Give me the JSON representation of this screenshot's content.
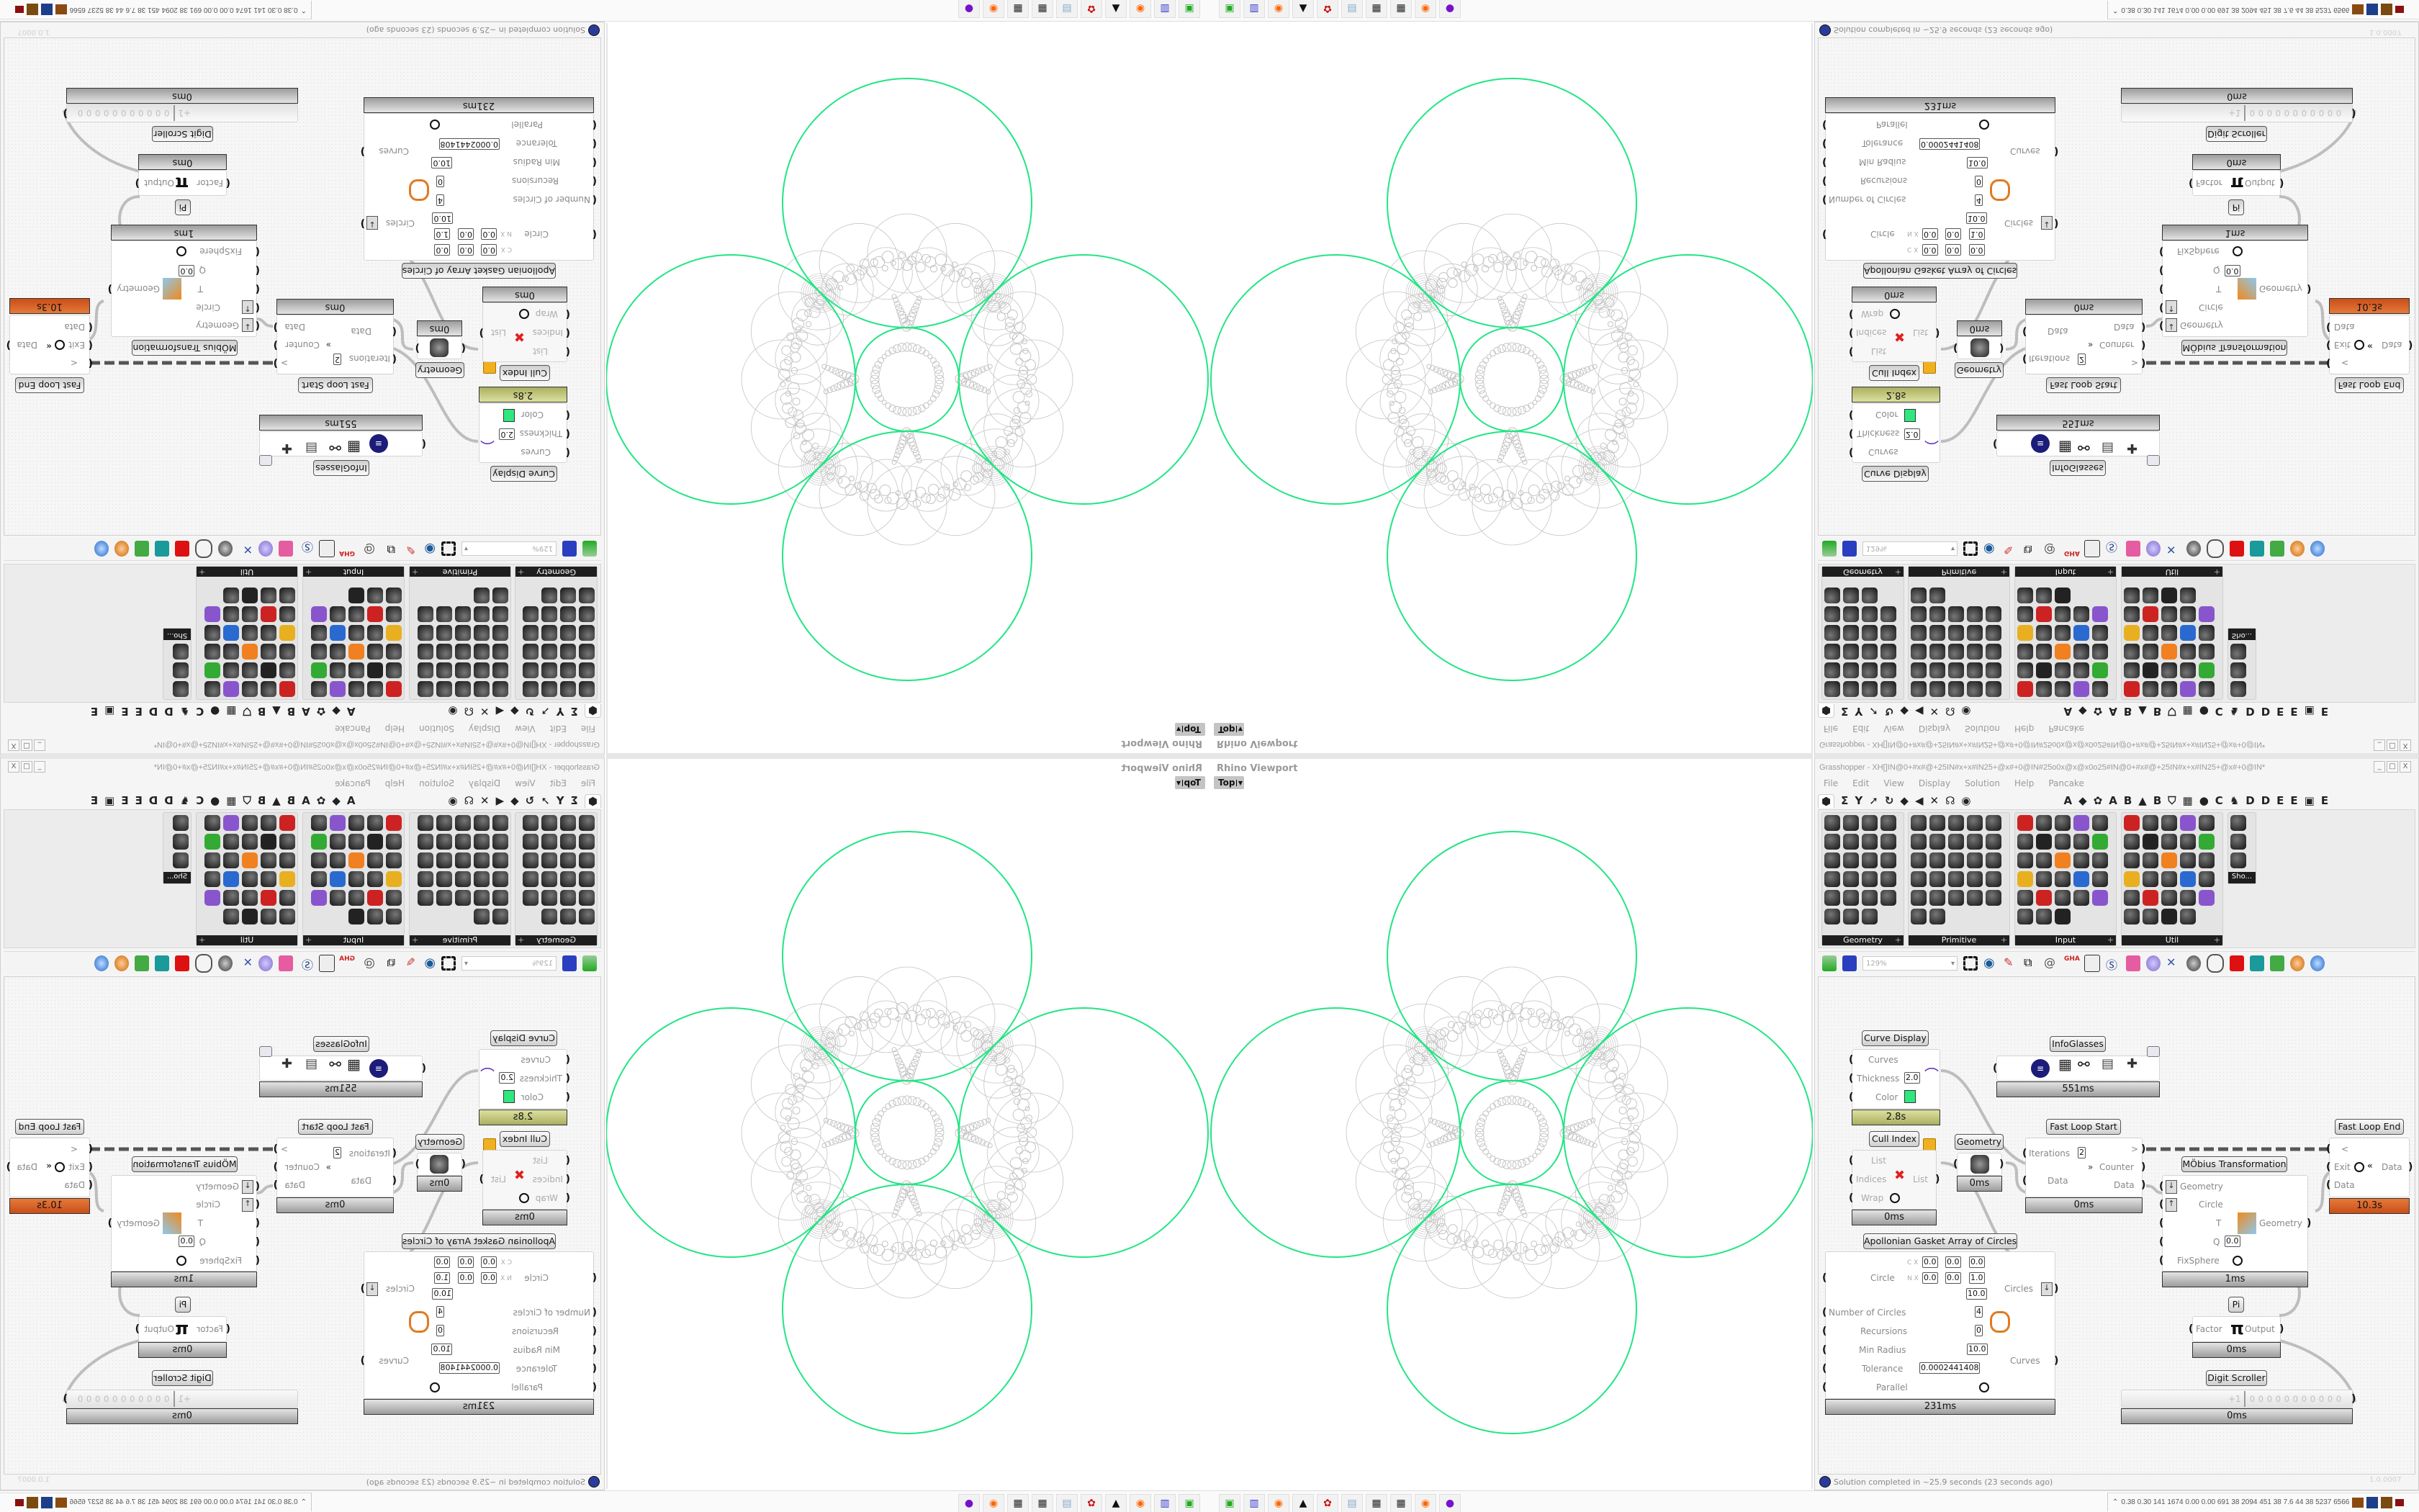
{
  "rhino": {
    "title": "Rhino Viewport",
    "view": "Top",
    "circle_color": "#22e584",
    "gasket_color": "#c4c4c4"
  },
  "gh": {
    "title": "Grasshopper - XH[]IN@0+#x#@+25IN#x+x#IN25+@x#+0@IN#25o0x@x@x0o25#IN@0+#x#@+25IN#x+x#IN25+@x#+0@IN*",
    "window_buttons": [
      "_",
      "□",
      "X"
    ],
    "menu": [
      "File",
      "Edit",
      "View",
      "Display",
      "Solution",
      "Help",
      "Pancake"
    ],
    "tabs": [
      "⬢",
      "Σ",
      "Y",
      "➚",
      "↻",
      "◆",
      "◀",
      "✕",
      "☊",
      "◉",
      "A",
      "◆",
      "✿",
      "A",
      "B",
      "▲",
      "B",
      "⛉",
      "▦",
      "●",
      "C",
      "♞",
      "D",
      "D",
      "E",
      "E",
      "▣",
      "E"
    ],
    "panels": [
      "Geometry",
      "Primitive",
      "Input",
      "Util",
      "Sho..."
    ],
    "zoom": "129%",
    "status": "Solution completed in ~25.9 seconds (23 seconds ago)",
    "version": "1.0.0007"
  },
  "nodes": {
    "curve_display": {
      "label": "Curve Display",
      "inputs": [
        "Curves",
        "Thickness",
        "Color"
      ],
      "thickness": "2.0",
      "color": "#2ee87f",
      "time": "2.8s"
    },
    "infoglasses": {
      "label": "InfoGlasses",
      "time": "551ms"
    },
    "cull_index": {
      "label": "Cull Index",
      "inputs": [
        "List",
        "Indices",
        "Wrap"
      ],
      "output": "List",
      "time": "0ms"
    },
    "geometry": {
      "label": "Geometry",
      "time": "0ms"
    },
    "fast_loop_start": {
      "label": "Fast Loop Start",
      "iterations_label": "Iterations",
      "iterations": "2",
      "data_in": "Data",
      "loop_out": ">",
      "counter": "Counter",
      "data_out": "Data",
      "time": "0ms"
    },
    "fast_loop_end": {
      "label": "Fast Loop End",
      "loop_in": "<",
      "exit": "Exit",
      "data_in": "Data",
      "data_out": "Data",
      "time": "10.3s"
    },
    "mobius": {
      "label": "MÖbius Transformation",
      "inputs": [
        "Geometry",
        "Circle",
        "T",
        "Q",
        "FixSphere"
      ],
      "q": "0.0",
      "output": "Geometry",
      "time": "1ms"
    },
    "pi": {
      "label": "Pi",
      "input": "Factor",
      "output": "Output",
      "time": "0ms"
    },
    "digit_scroller": {
      "label": "Digit Scroller",
      "prefix": "+1",
      "digits": "0 0 0 0 0 0 0 0 0 0 0",
      "time": "0ms"
    },
    "apollonian": {
      "label": "Apollonian Gasket Array of Circles",
      "circle_label": "Circle",
      "c": {
        "x": "0.0",
        "y": "0.0",
        "z": "0.0"
      },
      "n": {
        "x": "0.0",
        "y": "0.0",
        "z": "1.0"
      },
      "r": "10.0",
      "inputs": [
        "Number of Circles",
        "Recursions",
        "Min Radius",
        "Tolerance",
        "Parallel"
      ],
      "values": [
        "4",
        "0",
        "10.0",
        "0.0002441408"
      ],
      "outputs": [
        "Circles",
        "Curves"
      ],
      "time": "231ms"
    }
  },
  "taskbar": {
    "apps": [
      "terminal-app",
      "floppy-64-app",
      "firefox",
      "wolf-app",
      "red-app",
      "notepad",
      "maze-app",
      "maze-app",
      "firefox",
      "purple-app"
    ],
    "perf": "0.38 0.30 141 1674 0.00 0.00 691 38 2094 451 38 7.6 44 38 5237 6566"
  }
}
